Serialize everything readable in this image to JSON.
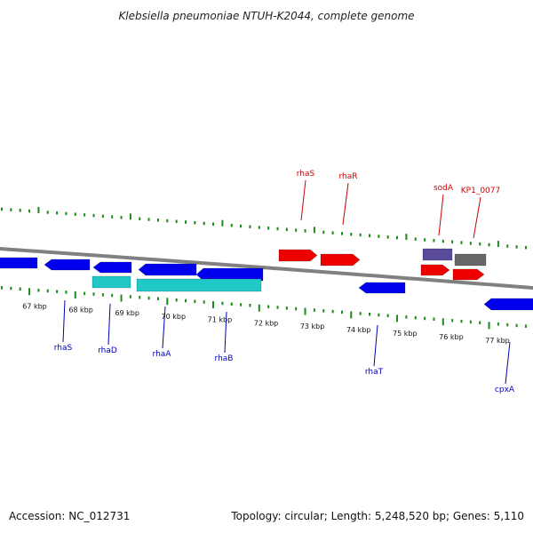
{
  "title": "Klebsiella pneumoniae NTUH-K2044, complete genome",
  "footer": {
    "accession": "Accession: NC_012731",
    "summary": "Topology: circular; Length: 5,248,520 bp; Genes: 5,110"
  },
  "colors": {
    "backbone": "#808080",
    "tick": "#1a8a1a",
    "forward_gene": "#ee0000",
    "forward_label": "#cc0000",
    "reverse_gene": "#0000ee",
    "reverse_label": "#0000bb",
    "rna_gene": "#20c8c8",
    "pseudo_gene": "#666666",
    "sodA_gene": "#5a4a9a"
  },
  "axis": {
    "unit": "kbp",
    "labels": [
      "67 kbp",
      "68 kbp",
      "69 kbp",
      "70 kbp",
      "71 kbp",
      "72 kbp",
      "73 kbp",
      "74 kbp",
      "75 kbp",
      "76 kbp",
      "77 kbp"
    ]
  },
  "gene_labels": {
    "rhaS_fwd": "rhaS",
    "rhaR": "rhaR",
    "sodA": "sodA",
    "KP1_0077": "KP1_0077",
    "rhaS_rev": "rhaS",
    "rhaD": "rhaD",
    "rhaA": "rhaA",
    "rhaB": "rhaB",
    "rhaT": "rhaT",
    "cpxA": "cpxA"
  }
}
